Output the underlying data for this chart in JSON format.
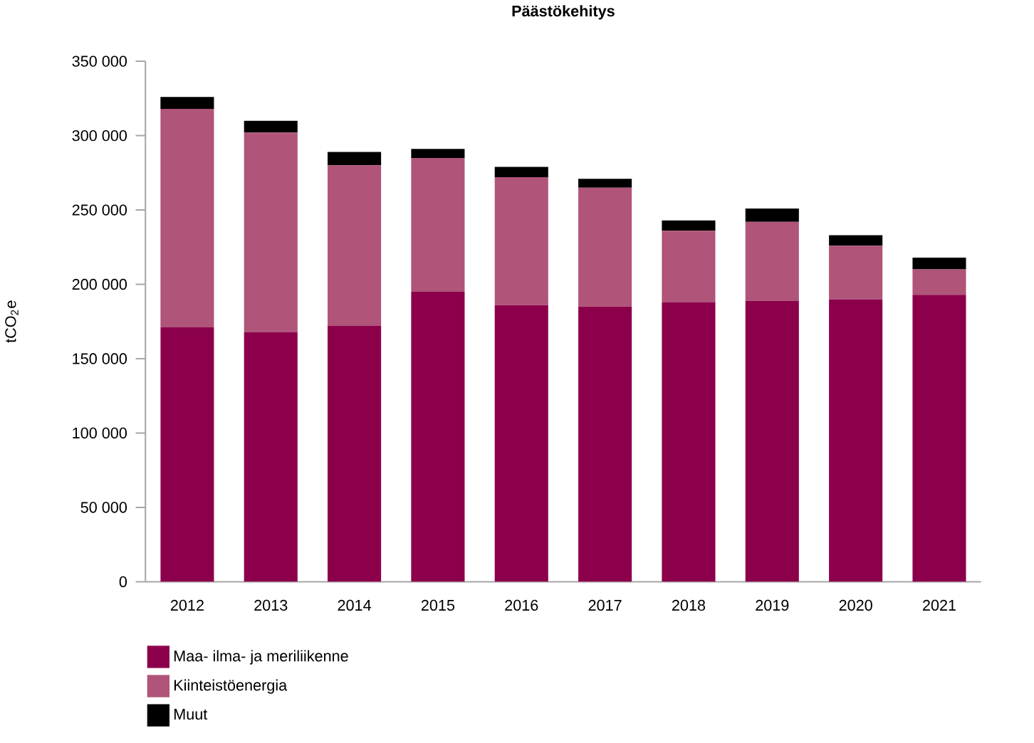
{
  "chart_data": {
    "type": "bar",
    "title": "Päästökehitys",
    "ylabel": "tCO$_{2}$e",
    "stacked": true,
    "legend": "bottom left",
    "grid": false,
    "categories": [
      "2012",
      "2013",
      "2014",
      "2015",
      "2016",
      "2017",
      "2018",
      "2019",
      "2020",
      "2021"
    ],
    "series": [
      {
        "name": "Maa- ilma- ja meriliikenne",
        "color": "#8c004b",
        "values": [
          171000,
          168000,
          172000,
          195000,
          186000,
          185000,
          188000,
          189000,
          190000,
          193000
        ]
      },
      {
        "name": "Kiinteistöenergia",
        "color": "#b05479",
        "values": [
          147000,
          134000,
          108000,
          90000,
          86000,
          80000,
          48000,
          53000,
          36000,
          17000
        ]
      },
      {
        "name": "Muut",
        "color": "#000000",
        "values": [
          8000,
          8000,
          9000,
          6000,
          7000,
          6000,
          7000,
          9000,
          7000,
          8000
        ]
      }
    ],
    "ylim": [
      0,
      350000
    ],
    "yticks": [
      {
        "value": 0,
        "label": "0"
      },
      {
        "value": 50000,
        "label": "50 000"
      },
      {
        "value": 100000,
        "label": "100 000"
      },
      {
        "value": 150000,
        "label": "150 000"
      },
      {
        "value": 200000,
        "label": "200 000"
      },
      {
        "value": 250000,
        "label": "250 000"
      },
      {
        "value": 300000,
        "label": "300 000"
      },
      {
        "value": 350000,
        "label": "350 000"
      }
    ]
  }
}
